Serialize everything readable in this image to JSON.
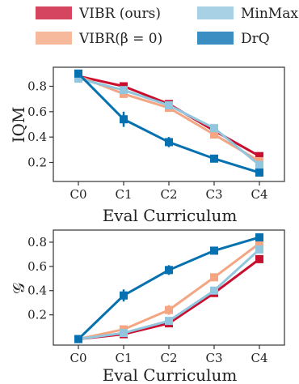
{
  "legend": {
    "entries": [
      {
        "name": "VIBR (ours)",
        "color": "#d6455f"
      },
      {
        "name": "VIBR(β = 0)",
        "color": "#f7b99c"
      },
      {
        "name": "MinMax",
        "color": "#a8d1e6"
      },
      {
        "name": "DrQ",
        "color": "#3a8ec2"
      }
    ]
  },
  "chart_data": [
    {
      "type": "line",
      "categories": [
        "C0",
        "C1",
        "C2",
        "C3",
        "C4"
      ],
      "xlabel": "Eval Curriculum",
      "ylabel": "IQM",
      "ylim": [
        0.05,
        0.95
      ],
      "yticks": [
        0.2,
        0.4,
        0.6,
        0.8
      ],
      "series": [
        {
          "name": "VIBR (ours)",
          "color": "#c8102e",
          "values": [
            0.88,
            0.8,
            0.66,
            0.45,
            0.25
          ],
          "err": [
            0.02,
            0.03,
            0.03,
            0.03,
            0.02
          ]
        },
        {
          "name": "VIBR(β = 0)",
          "color": "#f4a582",
          "values": [
            0.88,
            0.74,
            0.63,
            0.42,
            0.21
          ],
          "err": [
            0.02,
            0.03,
            0.03,
            0.03,
            0.02
          ]
        },
        {
          "name": "MinMax",
          "color": "#92c5de",
          "values": [
            0.86,
            0.77,
            0.65,
            0.47,
            0.18
          ],
          "err": [
            0.03,
            0.03,
            0.03,
            0.03,
            0.02
          ]
        },
        {
          "name": "DrQ",
          "color": "#0571b0",
          "values": [
            0.9,
            0.54,
            0.36,
            0.23,
            0.12
          ],
          "err": [
            0.02,
            0.06,
            0.04,
            0.03,
            0.02
          ]
        }
      ]
    },
    {
      "type": "line",
      "categories": [
        "C0",
        "C1",
        "C2",
        "C3",
        "C4"
      ],
      "xlabel": "Eval Curriculum",
      "ylabel": "𝒢",
      "ylim": [
        -0.05,
        0.9
      ],
      "yticks": [
        0.2,
        0.4,
        0.6,
        0.8
      ],
      "series": [
        {
          "name": "VIBR (ours)",
          "color": "#c8102e",
          "values": [
            0.0,
            0.04,
            0.13,
            0.38,
            0.66
          ],
          "err": [
            0.0,
            0.01,
            0.02,
            0.03,
            0.02
          ]
        },
        {
          "name": "VIBR(β = 0)",
          "color": "#f4a582",
          "values": [
            0.0,
            0.08,
            0.24,
            0.51,
            0.79
          ],
          "err": [
            0.0,
            0.02,
            0.04,
            0.03,
            0.02
          ]
        },
        {
          "name": "MinMax",
          "color": "#92c5de",
          "values": [
            0.0,
            0.05,
            0.15,
            0.4,
            0.74
          ],
          "err": [
            0.0,
            0.02,
            0.03,
            0.03,
            0.02
          ]
        },
        {
          "name": "DrQ",
          "color": "#0571b0",
          "values": [
            0.0,
            0.36,
            0.57,
            0.73,
            0.84
          ],
          "err": [
            0.0,
            0.05,
            0.04,
            0.03,
            0.01
          ]
        }
      ]
    }
  ]
}
